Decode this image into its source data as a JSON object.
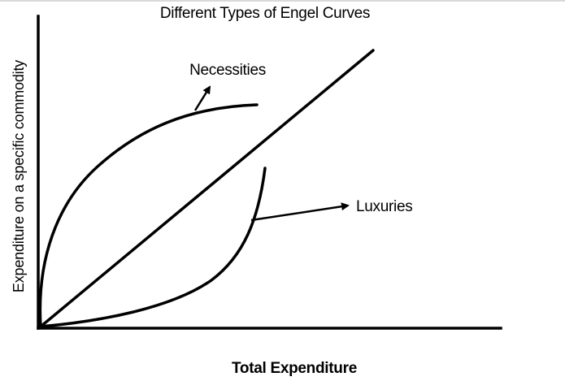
{
  "title": "Different Types of Engel Curves",
  "x_axis_label": "Total Expenditure",
  "y_axis_label": "Expenditure on a specific commodity",
  "curves": [
    {
      "id": "necessities",
      "label": "Necessities",
      "shape": "concave"
    },
    {
      "id": "linear",
      "label": "",
      "shape": "linear"
    },
    {
      "id": "luxuries",
      "label": "Luxuries",
      "shape": "convex"
    }
  ],
  "colors": {
    "line": "#000000",
    "background": "#ffffff"
  }
}
